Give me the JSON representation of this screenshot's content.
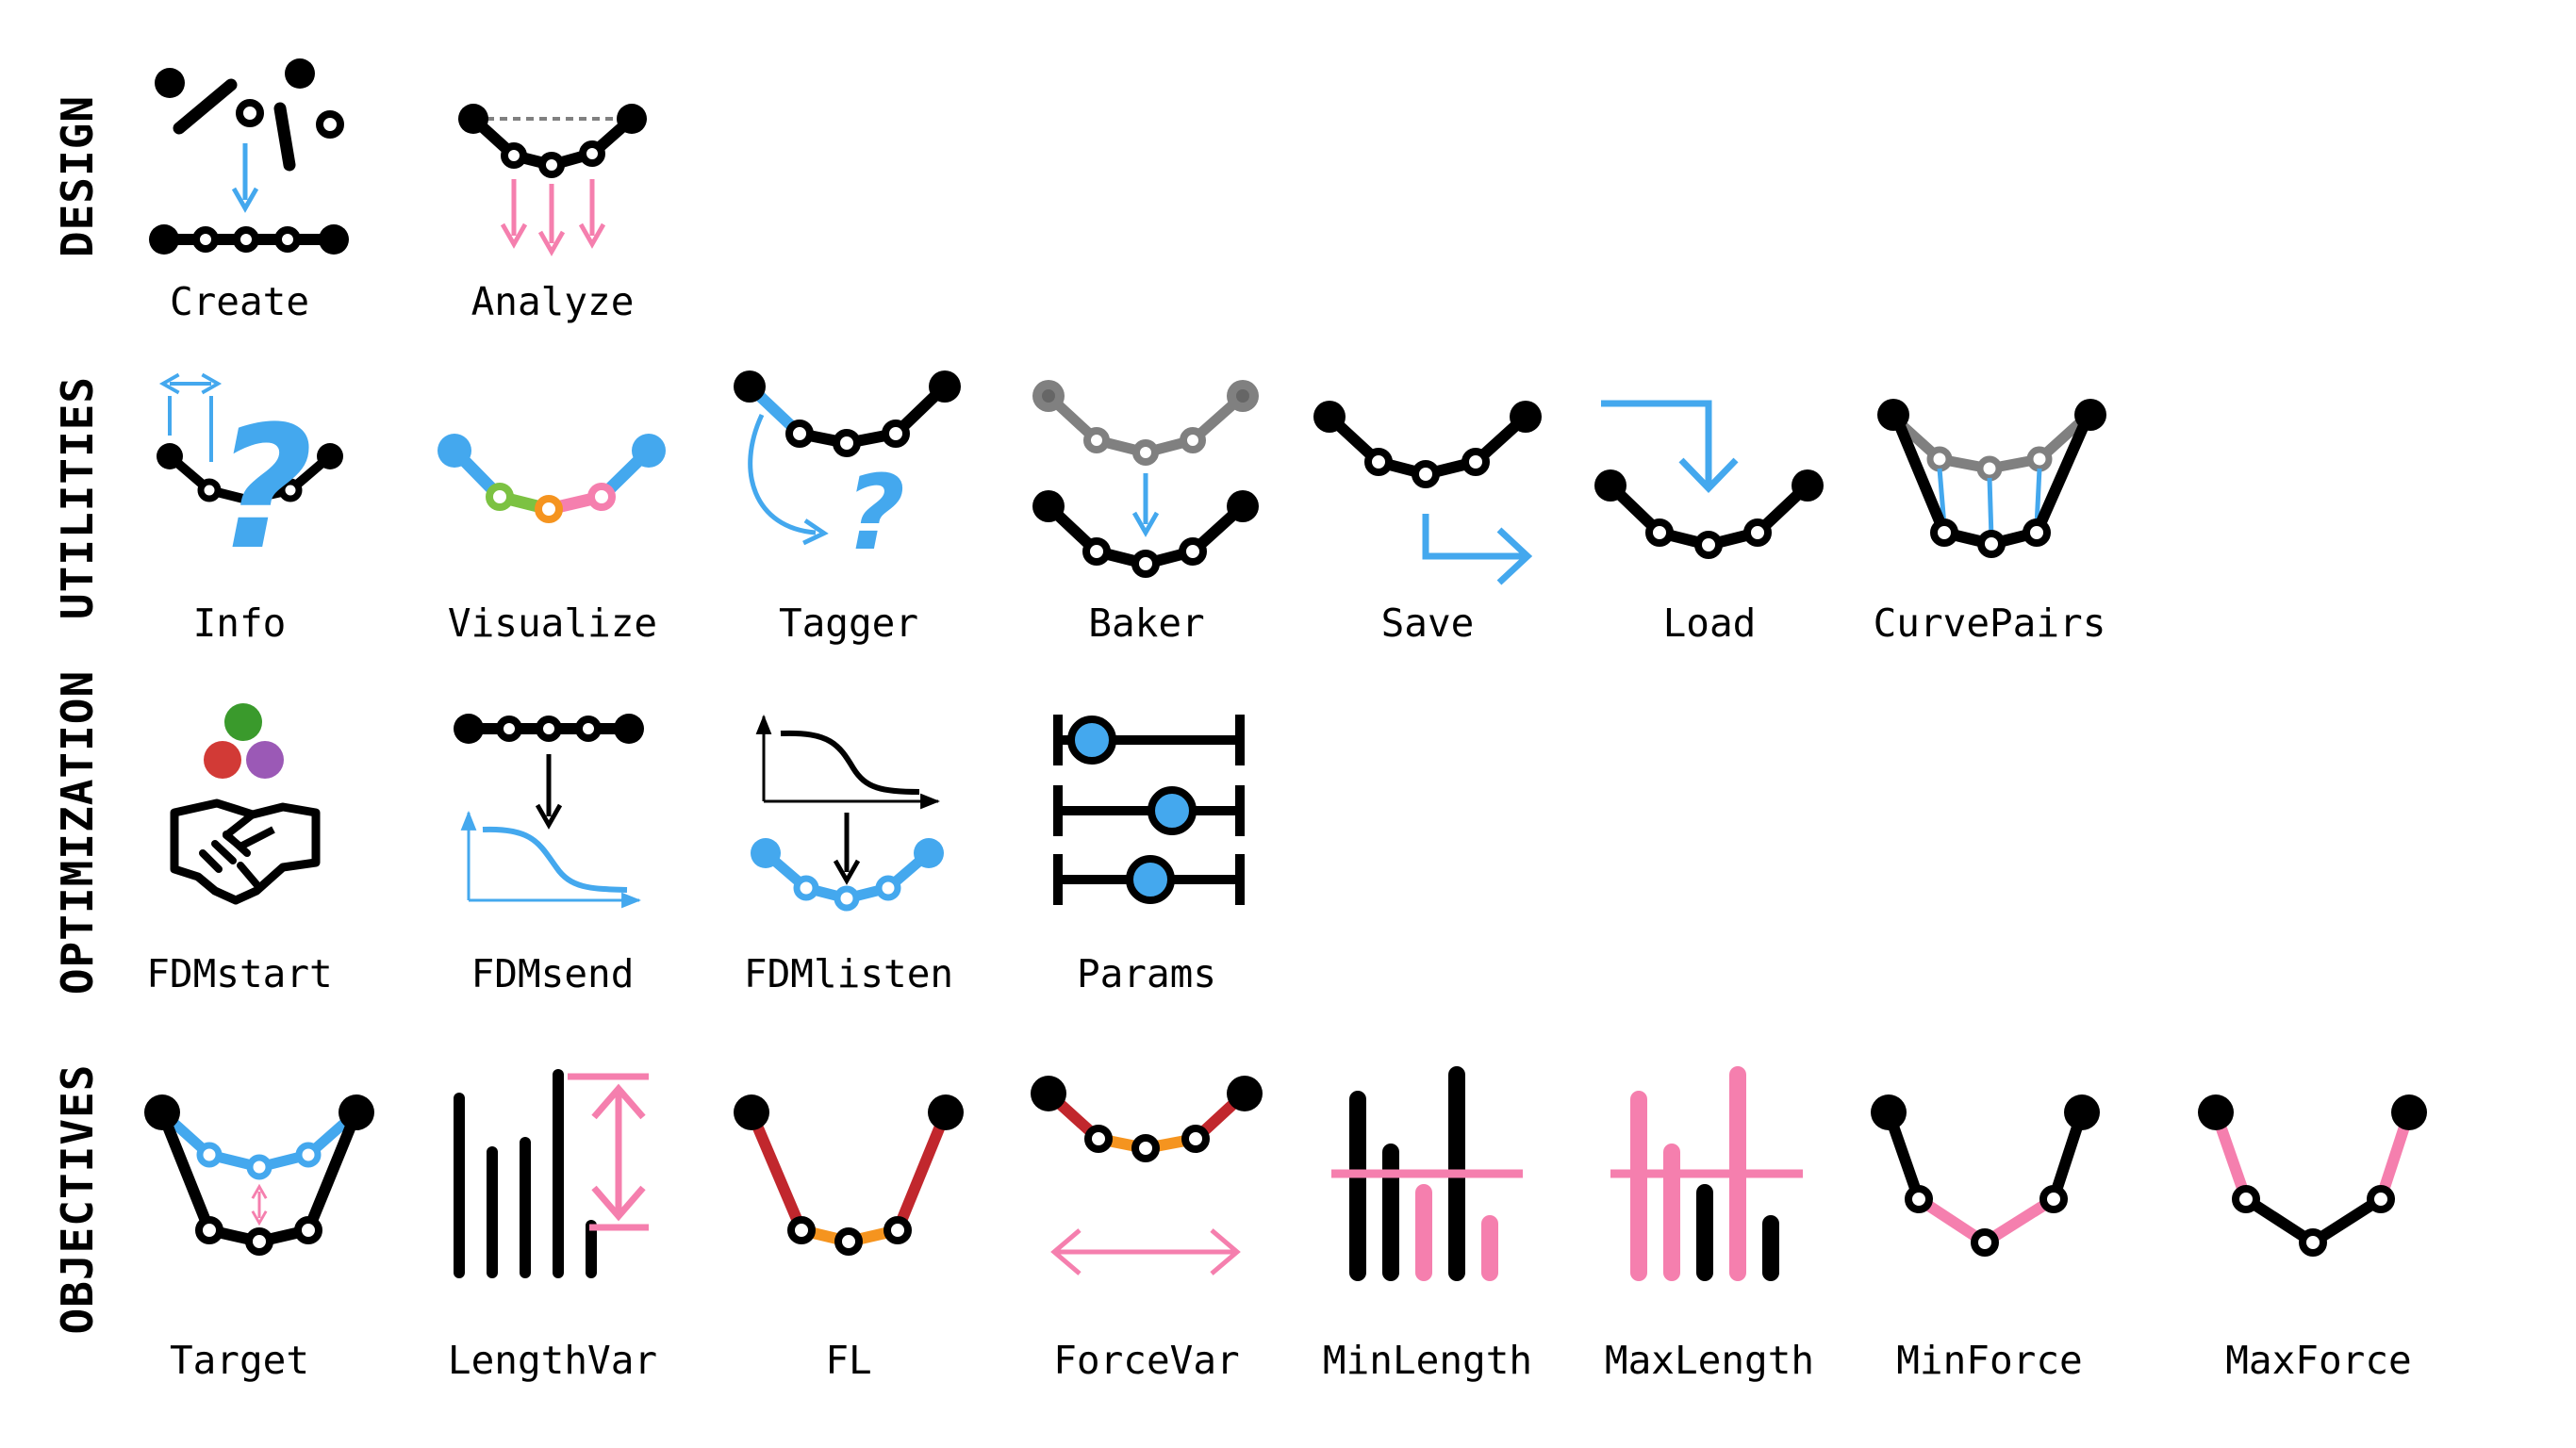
{
  "categories": {
    "design": "DESIGN",
    "utilities": "UTILITIES",
    "optimization": "OPTIMIZATION",
    "objectives": "OBJECTIVES"
  },
  "components": {
    "create": "Create",
    "analyze": "Analyze",
    "info": "Info",
    "visualize": "Visualize",
    "tagger": "Tagger",
    "baker": "Baker",
    "save": "Save",
    "load": "Load",
    "curvepairs": "CurvePairs",
    "fdmstart": "FDMstart",
    "fdmsend": "FDMsend",
    "fdmlisten": "FDMlisten",
    "params": "Params",
    "target": "Target",
    "lengthvar": "LengthVar",
    "fl": "FL",
    "forcevar": "ForceVar",
    "minlength": "MinLength",
    "maxlength": "MaxLength",
    "minforce": "MinForce",
    "maxforce": "MaxForce"
  },
  "colors": {
    "black": "#000000",
    "blue": "#44a8ee",
    "pink": "#f57fae",
    "gray": "#808080",
    "green": "#7cc242",
    "orange": "#f5941f",
    "red": "#c1272d",
    "dark_green": "#3a9a2c",
    "purple": "#9b59b6",
    "pale_red": "#d23a36",
    "white": "#ffffff"
  },
  "icons": {
    "create": "create-icon",
    "analyze": "analyze-icon",
    "info": "info-icon",
    "visualize": "visualize-icon",
    "tagger": "tagger-icon",
    "baker": "baker-icon",
    "save": "save-icon",
    "load": "load-icon",
    "curvepairs": "curvepairs-icon",
    "fdmstart": "handshake-icon",
    "fdmsend": "fdmsend-icon",
    "fdmlisten": "fdmlisten-icon",
    "params": "sliders-icon",
    "target": "target-icon",
    "lengthvar": "lengthvar-icon",
    "fl": "fl-icon",
    "forcevar": "forcevar-icon",
    "minlength": "minlength-icon",
    "maxlength": "maxlength-icon",
    "minforce": "minforce-icon",
    "maxforce": "maxforce-icon"
  },
  "glyphs": {
    "question": "?"
  }
}
